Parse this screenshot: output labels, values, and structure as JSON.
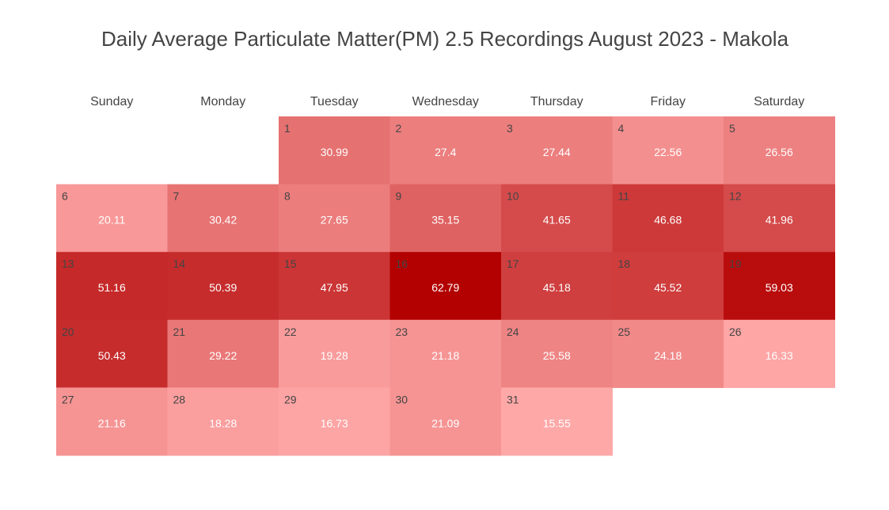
{
  "chart_data": {
    "type": "heatmap",
    "title": "Daily Average Particulate Matter(PM) 2.5 Recordings August 2023 - Makola",
    "weekdays": [
      "Sunday",
      "Monday",
      "Tuesday",
      "Wednesday",
      "Thursday",
      "Friday",
      "Saturday"
    ],
    "first_weekday_index": 2,
    "color_scale": {
      "low": "#ffa8a8",
      "high": "#b30000"
    },
    "days": [
      {
        "day": 1,
        "value": 30.99
      },
      {
        "day": 2,
        "value": 27.4
      },
      {
        "day": 3,
        "value": 27.44
      },
      {
        "day": 4,
        "value": 22.56
      },
      {
        "day": 5,
        "value": 26.56
      },
      {
        "day": 6,
        "value": 20.11
      },
      {
        "day": 7,
        "value": 30.42
      },
      {
        "day": 8,
        "value": 27.65
      },
      {
        "day": 9,
        "value": 35.15
      },
      {
        "day": 10,
        "value": 41.65
      },
      {
        "day": 11,
        "value": 46.68
      },
      {
        "day": 12,
        "value": 41.96
      },
      {
        "day": 13,
        "value": 51.16
      },
      {
        "day": 14,
        "value": 50.39
      },
      {
        "day": 15,
        "value": 47.95
      },
      {
        "day": 16,
        "value": 62.79
      },
      {
        "day": 17,
        "value": 45.18
      },
      {
        "day": 18,
        "value": 45.52
      },
      {
        "day": 19,
        "value": 59.03
      },
      {
        "day": 20,
        "value": 50.43
      },
      {
        "day": 21,
        "value": 29.22
      },
      {
        "day": 22,
        "value": 19.28
      },
      {
        "day": 23,
        "value": 21.18
      },
      {
        "day": 24,
        "value": 25.58
      },
      {
        "day": 25,
        "value": 24.18
      },
      {
        "day": 26,
        "value": 16.33
      },
      {
        "day": 27,
        "value": 21.16
      },
      {
        "day": 28,
        "value": 18.28
      },
      {
        "day": 29,
        "value": 16.73
      },
      {
        "day": 30,
        "value": 21.09
      },
      {
        "day": 31,
        "value": 15.55
      }
    ]
  }
}
